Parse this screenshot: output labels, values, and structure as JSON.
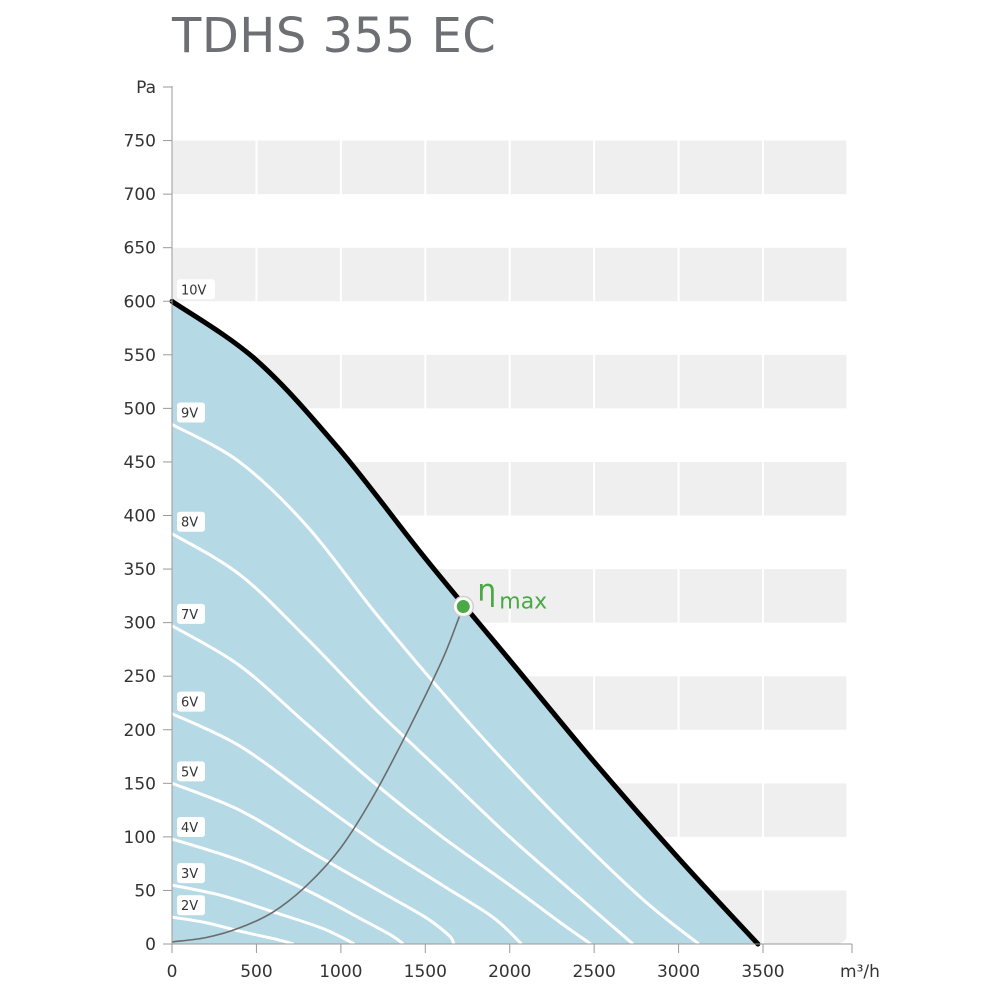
{
  "chart_data": {
    "type": "line",
    "title": "TDHS 355 EC",
    "xlabel": "m³/h",
    "ylabel": "Pa",
    "xlim": [
      0,
      3500
    ],
    "ylim": [
      0,
      800
    ],
    "x_ticks": [
      "0",
      "500",
      "1000",
      "1500",
      "2000",
      "2500",
      "3000",
      "3500"
    ],
    "y_ticks": [
      "0",
      "50",
      "100",
      "150",
      "200",
      "250",
      "300",
      "350",
      "400",
      "450",
      "500",
      "550",
      "600",
      "650",
      "700",
      "750"
    ],
    "grid": true,
    "colors": {
      "fill": "#b6d9e6",
      "curve_main": "#000000",
      "curve_inner": "#ffffff",
      "eta": "#4aa845",
      "band": "#efefef"
    },
    "series": [
      {
        "name": "10V",
        "points": [
          [
            0,
            600
          ],
          [
            500,
            545
          ],
          [
            1000,
            460
          ],
          [
            1500,
            360
          ],
          [
            2000,
            265
          ],
          [
            2500,
            170
          ],
          [
            3000,
            80
          ],
          [
            3470,
            0
          ]
        ]
      },
      {
        "name": "9V",
        "points": [
          [
            0,
            485
          ],
          [
            400,
            450
          ],
          [
            800,
            390
          ],
          [
            1200,
            310
          ],
          [
            1600,
            235
          ],
          [
            2000,
            165
          ],
          [
            2400,
            100
          ],
          [
            2800,
            40
          ],
          [
            3120,
            0
          ]
        ]
      },
      {
        "name": "8V",
        "points": [
          [
            0,
            383
          ],
          [
            400,
            345
          ],
          [
            800,
            285
          ],
          [
            1200,
            220
          ],
          [
            1600,
            160
          ],
          [
            2000,
            100
          ],
          [
            2400,
            45
          ],
          [
            2730,
            0
          ]
        ]
      },
      {
        "name": "7V",
        "points": [
          [
            0,
            297
          ],
          [
            400,
            260
          ],
          [
            800,
            205
          ],
          [
            1200,
            150
          ],
          [
            1600,
            100
          ],
          [
            2000,
            55
          ],
          [
            2300,
            20
          ],
          [
            2480,
            0
          ]
        ]
      },
      {
        "name": "6V",
        "points": [
          [
            0,
            215
          ],
          [
            400,
            185
          ],
          [
            800,
            140
          ],
          [
            1200,
            95
          ],
          [
            1600,
            55
          ],
          [
            1900,
            25
          ],
          [
            2070,
            0
          ]
        ]
      },
      {
        "name": "5V",
        "points": [
          [
            0,
            150
          ],
          [
            400,
            125
          ],
          [
            800,
            88
          ],
          [
            1200,
            52
          ],
          [
            1500,
            25
          ],
          [
            1640,
            8
          ],
          [
            1670,
            0
          ]
        ]
      },
      {
        "name": "4V",
        "points": [
          [
            0,
            98
          ],
          [
            400,
            78
          ],
          [
            800,
            50
          ],
          [
            1100,
            25
          ],
          [
            1300,
            8
          ],
          [
            1370,
            0
          ]
        ]
      },
      {
        "name": "3V",
        "points": [
          [
            0,
            55
          ],
          [
            300,
            45
          ],
          [
            600,
            30
          ],
          [
            900,
            14
          ],
          [
            1080,
            0
          ]
        ]
      },
      {
        "name": "2V",
        "points": [
          [
            0,
            25
          ],
          [
            200,
            20
          ],
          [
            400,
            12
          ],
          [
            600,
            5
          ],
          [
            720,
            0
          ]
        ]
      }
    ],
    "efficiency_curve": {
      "points": [
        [
          0,
          2
        ],
        [
          200,
          6
        ],
        [
          400,
          15
        ],
        [
          600,
          30
        ],
        [
          800,
          55
        ],
        [
          1000,
          90
        ],
        [
          1200,
          140
        ],
        [
          1400,
          200
        ],
        [
          1600,
          265
        ],
        [
          1700,
          305
        ],
        [
          1725,
          315
        ]
      ]
    },
    "eta_max": {
      "label_symbol": "η",
      "label_sub": "max",
      "x": 1725,
      "y": 315
    }
  }
}
